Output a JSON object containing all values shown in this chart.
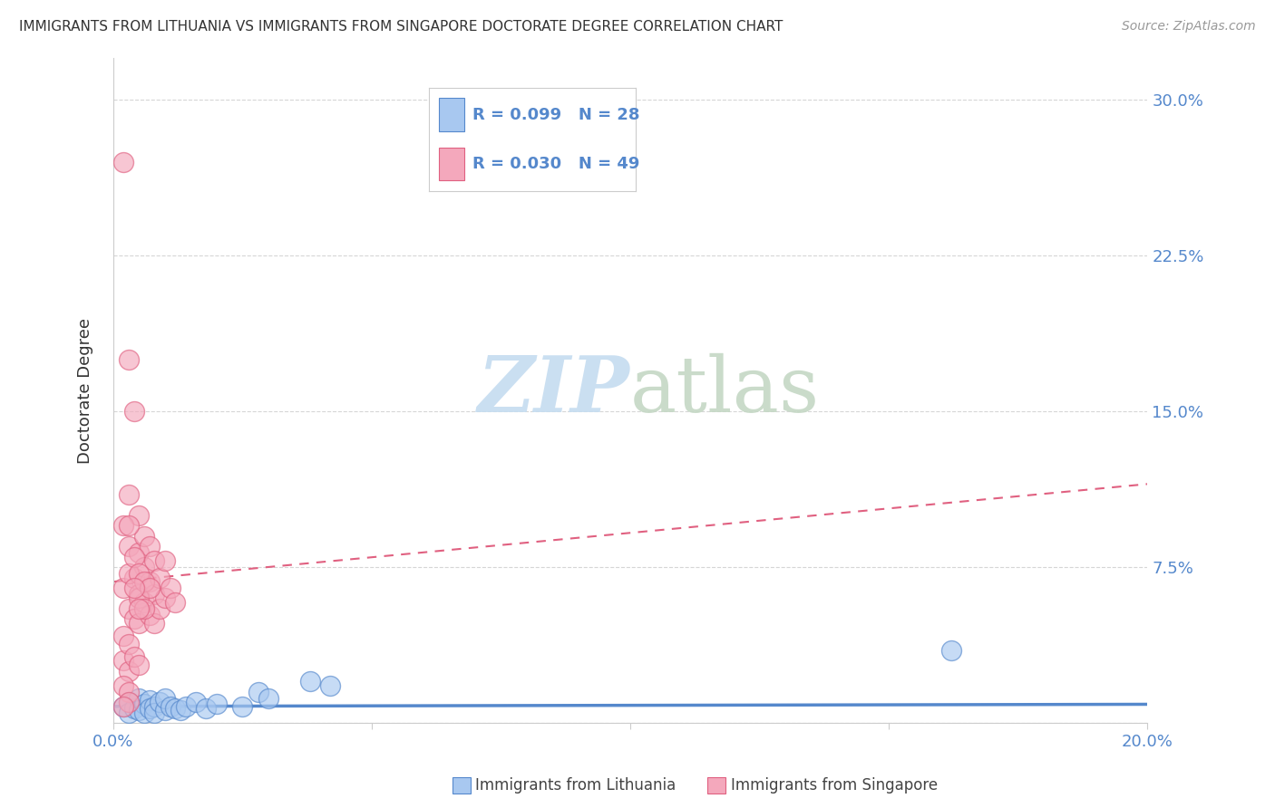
{
  "title": "IMMIGRANTS FROM LITHUANIA VS IMMIGRANTS FROM SINGAPORE DOCTORATE DEGREE CORRELATION CHART",
  "source": "Source: ZipAtlas.com",
  "ylabel": "Doctorate Degree",
  "xlim": [
    0.0,
    0.2
  ],
  "ylim": [
    0.0,
    0.32
  ],
  "color_lithuania": "#A8C8F0",
  "color_singapore": "#F4A8BC",
  "color_line_lithuania": "#5588CC",
  "color_line_singapore": "#E06080",
  "background": "#FFFFFF",
  "grid_color": "#CCCCCC",
  "tick_color": "#5588CC",
  "title_color": "#333333",
  "source_color": "#999999",
  "legend_text_color": "#5588CC",
  "bottom_legend_text_color": "#444444",
  "lith_trend_y0": 0.008,
  "lith_trend_y1": 0.009,
  "sing_trend_y0": 0.068,
  "sing_trend_y1": 0.115,
  "singapore_x": [
    0.002,
    0.002,
    0.003,
    0.003,
    0.003,
    0.004,
    0.004,
    0.004,
    0.005,
    0.005,
    0.005,
    0.005,
    0.006,
    0.006,
    0.006,
    0.007,
    0.007,
    0.007,
    0.008,
    0.008,
    0.008,
    0.009,
    0.009,
    0.01,
    0.01,
    0.011,
    0.012,
    0.002,
    0.003,
    0.003,
    0.004,
    0.005,
    0.005,
    0.006,
    0.006,
    0.007,
    0.003,
    0.004,
    0.005,
    0.002,
    0.002,
    0.003,
    0.003,
    0.004,
    0.005,
    0.002,
    0.003,
    0.003,
    0.002
  ],
  "singapore_y": [
    0.27,
    0.065,
    0.175,
    0.085,
    0.055,
    0.15,
    0.07,
    0.05,
    0.1,
    0.082,
    0.062,
    0.048,
    0.09,
    0.075,
    0.058,
    0.085,
    0.068,
    0.052,
    0.078,
    0.062,
    0.048,
    0.07,
    0.055,
    0.078,
    0.06,
    0.065,
    0.058,
    0.095,
    0.095,
    0.072,
    0.08,
    0.072,
    0.06,
    0.068,
    0.055,
    0.065,
    0.11,
    0.065,
    0.055,
    0.042,
    0.03,
    0.038,
    0.025,
    0.032,
    0.028,
    0.018,
    0.015,
    0.01,
    0.008
  ],
  "lithuania_x": [
    0.002,
    0.003,
    0.003,
    0.004,
    0.005,
    0.005,
    0.006,
    0.006,
    0.007,
    0.007,
    0.008,
    0.008,
    0.009,
    0.01,
    0.01,
    0.011,
    0.012,
    0.013,
    0.014,
    0.016,
    0.018,
    0.02,
    0.025,
    0.028,
    0.03,
    0.038,
    0.042,
    0.162
  ],
  "lithuania_y": [
    0.008,
    0.01,
    0.005,
    0.007,
    0.012,
    0.006,
    0.009,
    0.005,
    0.011,
    0.007,
    0.008,
    0.005,
    0.01,
    0.006,
    0.012,
    0.008,
    0.007,
    0.006,
    0.008,
    0.01,
    0.007,
    0.009,
    0.008,
    0.015,
    0.012,
    0.02,
    0.018,
    0.035
  ]
}
